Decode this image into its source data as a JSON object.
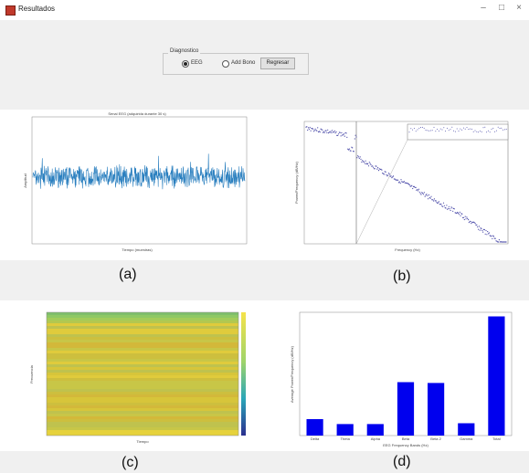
{
  "window": {
    "title": "Resultados",
    "controls": {
      "minimize": "–",
      "maximize": "□",
      "close": "×"
    }
  },
  "panel": {
    "group_title": "Diagnostico",
    "radio_eeg_label": "EEG",
    "radio_other_label": "Add Bono",
    "radio_eeg_selected": true,
    "button_label": "Regresar"
  },
  "captions": {
    "a": "(a)",
    "b": "(b)",
    "c": "(c)",
    "d": "(d)"
  },
  "chart_data": [
    {
      "type": "line",
      "panel": "a",
      "title": "Senal EEG (adquirida durante 30 s)",
      "xlabel": "Tiempo (muestras)",
      "ylabel": "Amplitud",
      "ylim": [
        -300,
        300
      ],
      "series": [
        {
          "color": "#2a7fbf",
          "description_values": "noisy EEG around 0"
        }
      ]
    },
    {
      "type": "scatter",
      "panel": "b",
      "xlabel": "Frequency (Hz)",
      "ylabel": "Power/Frequency (dB/Hz)",
      "series": [
        {
          "color": "#4a4aa8"
        }
      ]
    },
    {
      "type": "heatmap",
      "panel": "c",
      "xlabel": "Tiempo",
      "ylabel": "Frecuencia"
    },
    {
      "type": "bar",
      "panel": "d",
      "xlabel": "EEG Frequency Bands (Hz)",
      "ylabel": "Average Power/Frequency (dB/Hz)",
      "categories": [
        "Delta",
        "Theta",
        "Alpha",
        "Beta",
        "Beta 2",
        "Gamma",
        "Total"
      ],
      "values": [
        2.0,
        1.4,
        1.4,
        6.5,
        6.4,
        1.5,
        14.5
      ],
      "ylim": [
        0,
        15
      ],
      "color": "#0000ee"
    }
  ]
}
